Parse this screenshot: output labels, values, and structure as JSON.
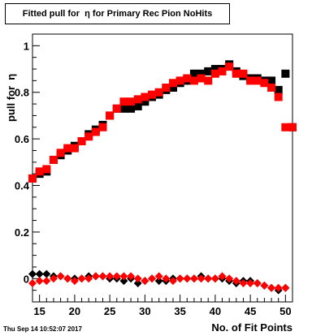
{
  "chart_data": {
    "type": "scatter",
    "title": "Fitted pull for  η for Primary Rec Pion NoHits",
    "xlabel": "No. of Fit Points",
    "ylabel": "pull for  η",
    "xlim": [
      14,
      51
    ],
    "ylim": [
      -0.1,
      1.05
    ],
    "xticks": [
      15,
      20,
      25,
      30,
      35,
      40,
      45,
      50
    ],
    "xtick_labels": [
      "15",
      "20",
      "25",
      "30",
      "35",
      "40",
      "45",
      "50"
    ],
    "yticks": [
      0,
      0.2,
      0.4,
      0.6,
      0.8,
      1.0
    ],
    "ytick_labels": [
      "0",
      "0.2",
      "0.4",
      "0.6",
      "0.8",
      "1"
    ],
    "grid": false,
    "legend": "none",
    "series": [
      {
        "color": "#000000",
        "marker": "square",
        "x": [
          14,
          15,
          16,
          17,
          18,
          19,
          20,
          21,
          22,
          23,
          24,
          25,
          26,
          27,
          28,
          29,
          30,
          31,
          32,
          33,
          34,
          35,
          36,
          37,
          38,
          39,
          40,
          41,
          42,
          43,
          44,
          45,
          46,
          47,
          48,
          49,
          50,
          51
        ],
        "y": [
          0.43,
          0.45,
          0.46,
          0.51,
          0.53,
          0.55,
          0.57,
          0.59,
          0.62,
          0.64,
          0.66,
          0.7,
          0.73,
          0.73,
          0.73,
          0.74,
          0.76,
          0.78,
          0.79,
          0.81,
          0.82,
          0.84,
          0.85,
          0.88,
          0.88,
          0.89,
          0.9,
          0.9,
          0.92,
          0.89,
          0.87,
          0.86,
          0.86,
          0.85,
          0.85,
          0.81,
          0.88,
          0.65
        ]
      },
      {
        "color": "#ff0000",
        "marker": "square",
        "x": [
          14,
          15,
          16,
          17,
          18,
          19,
          20,
          21,
          22,
          23,
          24,
          25,
          26,
          27,
          28,
          29,
          30,
          31,
          32,
          33,
          34,
          35,
          36,
          37,
          38,
          39,
          40,
          41,
          42,
          43,
          44,
          45,
          46,
          47,
          48,
          49,
          50,
          51
        ],
        "y": [
          0.43,
          0.46,
          0.47,
          0.51,
          0.54,
          0.56,
          0.56,
          0.59,
          0.61,
          0.63,
          0.65,
          0.7,
          0.73,
          0.76,
          0.76,
          0.77,
          0.78,
          0.79,
          0.8,
          0.82,
          0.84,
          0.85,
          0.86,
          0.85,
          0.86,
          0.85,
          0.88,
          0.89,
          0.91,
          0.88,
          0.88,
          0.85,
          0.85,
          0.84,
          0.82,
          0.78,
          0.65,
          0.65
        ]
      },
      {
        "color": "#000000",
        "marker": "diamond",
        "x": [
          14,
          15,
          16,
          17,
          18,
          19,
          20,
          21,
          22,
          23,
          24,
          25,
          26,
          27,
          28,
          29,
          30,
          31,
          32,
          33,
          34,
          35,
          36,
          37,
          38,
          39,
          40,
          41,
          42,
          43,
          44,
          45,
          46,
          47,
          48,
          49,
          50
        ],
        "y": [
          0.02,
          0.02,
          0.02,
          0.01,
          0.01,
          0.0,
          0.0,
          0.0,
          0.01,
          0.01,
          0.01,
          0.0,
          0.0,
          -0.01,
          0.0,
          -0.02,
          -0.01,
          0.0,
          -0.01,
          -0.01,
          0.0,
          0.0,
          0.0,
          0.0,
          0.01,
          0.0,
          0.0,
          0.0,
          -0.01,
          -0.02,
          -0.01,
          -0.01,
          -0.02,
          -0.03,
          -0.04,
          -0.05,
          -0.04
        ]
      },
      {
        "color": "#ff0000",
        "marker": "diamond",
        "x": [
          14,
          15,
          16,
          17,
          18,
          19,
          20,
          21,
          22,
          23,
          24,
          25,
          26,
          27,
          28,
          29,
          30,
          31,
          32,
          33,
          34,
          35,
          36,
          37,
          38,
          39,
          40,
          41,
          42,
          43,
          44,
          45,
          46,
          47,
          48,
          49,
          50
        ],
        "y": [
          -0.02,
          -0.01,
          -0.01,
          0.0,
          0.01,
          0.0,
          -0.01,
          0.0,
          0.0,
          0.01,
          0.01,
          0.01,
          0.01,
          0.01,
          0.01,
          0.0,
          -0.01,
          0.0,
          0.01,
          0.0,
          -0.01,
          0.0,
          0.0,
          0.0,
          0.0,
          0.0,
          0.0,
          0.01,
          0.0,
          -0.01,
          -0.02,
          -0.02,
          -0.02,
          -0.03,
          -0.04,
          -0.04,
          -0.04
        ]
      }
    ]
  },
  "footer": {
    "timestamp": "Thu Sep 14 10:52:07 2017"
  }
}
